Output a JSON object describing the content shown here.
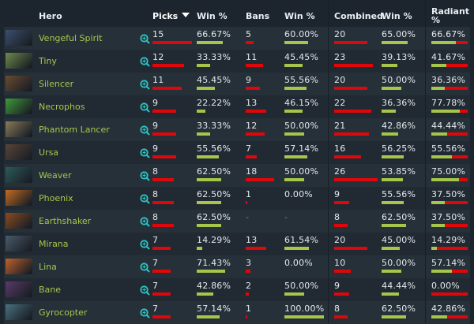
{
  "header": {
    "hero": "Hero",
    "picks": "Picks",
    "picks_win": "Win %",
    "bans": "Bans",
    "bans_win": "Win %",
    "combined": "Combined",
    "combined_win": "Win %",
    "radiant_line1": "Radiant",
    "radiant_line2": "%"
  },
  "colors": {
    "bar_count": "#e0070b",
    "bar_win": "#a5c64a",
    "hero_name": "#a3c84b",
    "zoom_icon": "#2ec4c4"
  },
  "rows": [
    {
      "hero": "Vengeful Spirit",
      "img": "#3b4f6e",
      "picks": "15",
      "picks_win": "66.67%",
      "bans": "5",
      "bans_win": "60.00%",
      "combined": "20",
      "combined_win": "65.00%",
      "radiant": "66.67%",
      "r": 66.67
    },
    {
      "hero": "Tiny",
      "img": "#6e8a4a",
      "picks": "12",
      "picks_win": "33.33%",
      "bans": "11",
      "bans_win": "45.45%",
      "combined": "23",
      "combined_win": "39.13%",
      "radiant": "41.67%",
      "r": 41.67
    },
    {
      "hero": "Silencer",
      "img": "#6a4b30",
      "picks": "11",
      "picks_win": "45.45%",
      "bans": "9",
      "bans_win": "55.56%",
      "combined": "20",
      "combined_win": "50.00%",
      "radiant": "36.36%",
      "r": 36.36
    },
    {
      "hero": "Necrophos",
      "img": "#3f9a3a",
      "picks": "9",
      "picks_win": "22.22%",
      "bans": "13",
      "bans_win": "46.15%",
      "combined": "22",
      "combined_win": "36.36%",
      "radiant": "77.78%",
      "r": 77.78
    },
    {
      "hero": "Phantom Lancer",
      "img": "#8a7a5a",
      "picks": "9",
      "picks_win": "33.33%",
      "bans": "12",
      "bans_win": "50.00%",
      "combined": "21",
      "combined_win": "42.86%",
      "radiant": "44.44%",
      "r": 44.44
    },
    {
      "hero": "Ursa",
      "img": "#5a4438",
      "picks": "9",
      "picks_win": "55.56%",
      "bans": "7",
      "bans_win": "57.14%",
      "combined": "16",
      "combined_win": "56.25%",
      "radiant": "55.56%",
      "r": 55.56
    },
    {
      "hero": "Weaver",
      "img": "#2c5a5a",
      "picks": "8",
      "picks_win": "62.50%",
      "bans": "18",
      "bans_win": "50.00%",
      "combined": "26",
      "combined_win": "53.85%",
      "radiant": "75.00%",
      "r": 75.0
    },
    {
      "hero": "Phoenix",
      "img": "#c46a20",
      "picks": "8",
      "picks_win": "62.50%",
      "bans": "1",
      "bans_win": "0.00%",
      "combined": "9",
      "combined_win": "55.56%",
      "radiant": "37.50%",
      "r": 37.5
    },
    {
      "hero": "Earthshaker",
      "img": "#8a4a20",
      "picks": "8",
      "picks_win": "62.50%",
      "bans": "-",
      "bans_win": "-",
      "combined": "8",
      "combined_win": "62.50%",
      "radiant": "37.50%",
      "r": 37.5
    },
    {
      "hero": "Mirana",
      "img": "#4a5a6a",
      "picks": "7",
      "picks_win": "14.29%",
      "bans": "13",
      "bans_win": "61.54%",
      "combined": "20",
      "combined_win": "45.00%",
      "radiant": "14.29%",
      "r": 14.29
    },
    {
      "hero": "Lina",
      "img": "#c0602a",
      "picks": "7",
      "picks_win": "71.43%",
      "bans": "3",
      "bans_win": "0.00%",
      "combined": "10",
      "combined_win": "50.00%",
      "radiant": "57.14%",
      "r": 57.14
    },
    {
      "hero": "Bane",
      "img": "#5a3a6a",
      "picks": "7",
      "picks_win": "42.86%",
      "bans": "2",
      "bans_win": "50.00%",
      "combined": "9",
      "combined_win": "44.44%",
      "radiant": "0.00%",
      "r": 0
    },
    {
      "hero": "Gyrocopter",
      "img": "#4a7080",
      "picks": "7",
      "picks_win": "57.14%",
      "bans": "1",
      "bans_win": "100.00%",
      "combined": "8",
      "combined_win": "62.50%",
      "radiant": "42.86%",
      "r": 42.86
    }
  ]
}
